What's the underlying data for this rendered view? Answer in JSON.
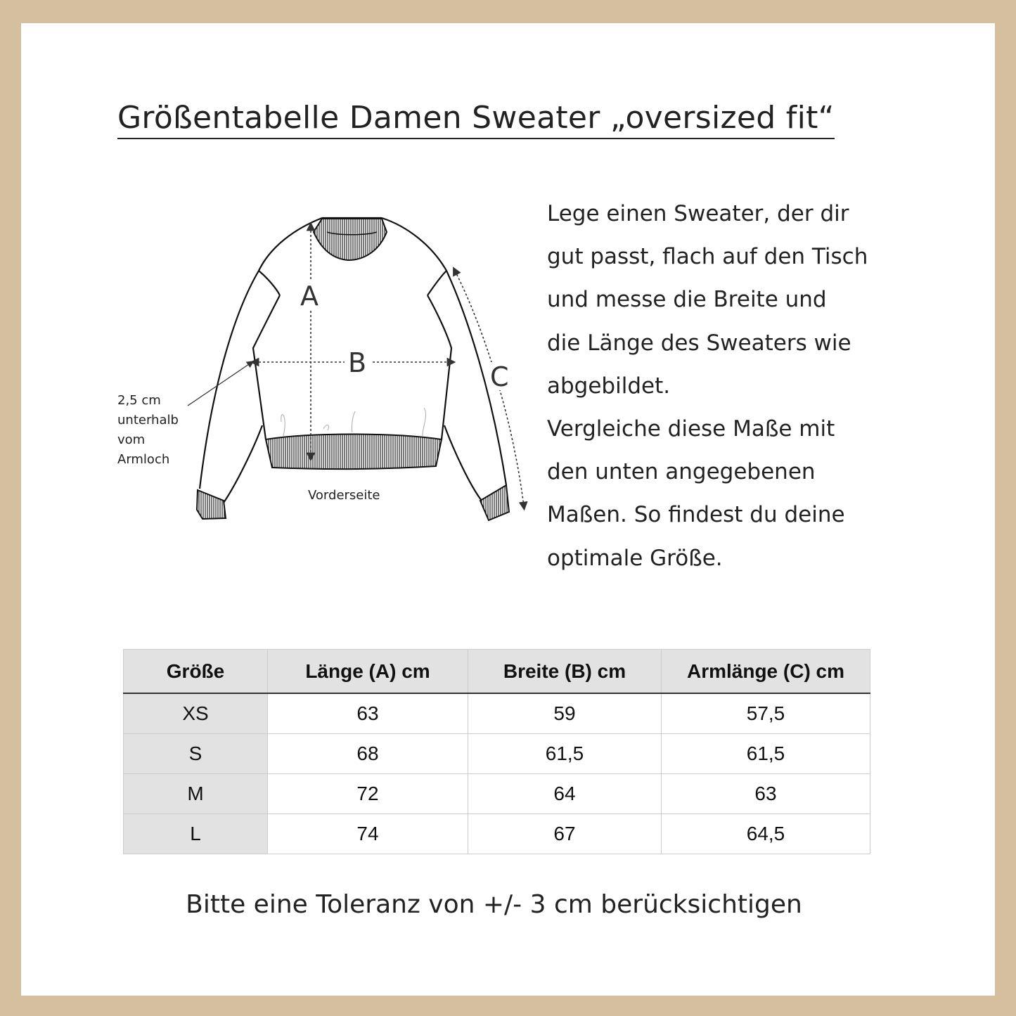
{
  "title": "Größentabelle Damen Sweater „oversized fit“",
  "instructions": [
    "Lege einen Sweater, der dir",
    "gut passt, flach auf den Tisch",
    "und messe die Breite und",
    "die Länge des Sweaters wie",
    "abgebildet.",
    "Vergleiche diese Maße mit",
    "den unten angegebenen",
    "Maßen. So findest du deine",
    "optimale Größe."
  ],
  "diagram": {
    "label_a": "A",
    "label_b": "B",
    "label_c": "C",
    "note": [
      "2,5 cm",
      "unterhalb",
      "vom",
      "Armloch"
    ],
    "caption": "Vorderseite"
  },
  "table": {
    "headers": [
      "Größe",
      "Länge (A) cm",
      "Breite (B) cm",
      "Armlänge (C) cm"
    ],
    "rows": [
      [
        "XS",
        "63",
        "59",
        "57,5"
      ],
      [
        "S",
        "68",
        "61,5",
        "61,5"
      ],
      [
        "M",
        "72",
        "64",
        "63"
      ],
      [
        "L",
        "74",
        "67",
        "64,5"
      ]
    ]
  },
  "footer": "Bitte eine Toleranz von +/- 3 cm berücksichtigen",
  "colors": {
    "frame": "#d6bf9e",
    "header_bg": "#e2e2e2"
  }
}
